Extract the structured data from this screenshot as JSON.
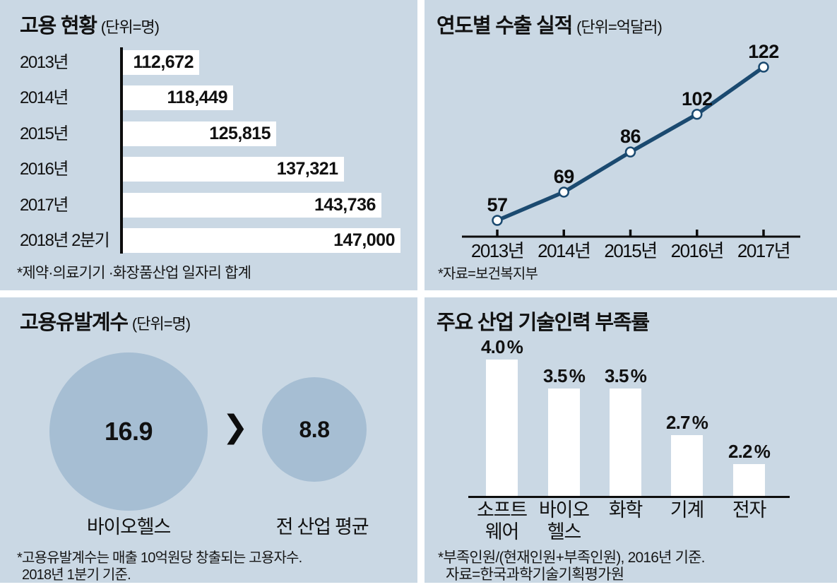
{
  "page": {
    "background": "#ffffff",
    "panel_background": "#cad8e4"
  },
  "colors": {
    "panel_background": "#cad8e4",
    "bar_fill": "#ffffff",
    "line_stroke": "#1b4a70",
    "marker_fill": "#ffffff",
    "bubble_fill": "#a6bed3",
    "axis": "#0d0d0d",
    "text": "#111111"
  },
  "panels": {
    "employment": {
      "title": "고용 현황",
      "unit": "(단위=명)",
      "footnote": "*제약·의료기기 ·화장품산업 일자리 합계"
    },
    "exports": {
      "title": "연도별 수출 실적",
      "unit": "(단위=억달러)",
      "footnote": "*자료=보건복지부"
    },
    "coefficient": {
      "title": "고용유발계수",
      "unit": "(단위=명)",
      "comparator": "❯",
      "items": [
        {
          "label": "바이오헬스",
          "value": "16.9"
        },
        {
          "label": "전 산업 평균",
          "value": "8.8"
        }
      ],
      "footnote_line1": "*고용유발계수는 매출 10억원당 창출되는 고용자수.",
      "footnote_line2": "2018년 1분기 기준."
    },
    "shortage": {
      "title": "주요 산업 기술인력 부족률",
      "footnote_line1": "*부족인원/(현재인원+부족인원), 2016년 기준.",
      "footnote_line2": "자료=한국과학기술기획평가원"
    }
  },
  "chart_data": [
    {
      "type": "bar",
      "orientation": "horizontal",
      "title": "고용 현황 (단위=명)",
      "categories": [
        "2013년",
        "2014년",
        "2015년",
        "2016년",
        "2017년",
        "2018년 2분기"
      ],
      "values": [
        112672,
        118449,
        125815,
        137321,
        143736,
        147000
      ],
      "value_labels": [
        "112,672",
        "118,449",
        "125,815",
        "137,321",
        "143,736",
        "147,000"
      ],
      "unit": "명",
      "note": "bars start at a vertical axis; value labels right-aligned inside white bars"
    },
    {
      "type": "line",
      "title": "연도별 수출 실적 (단위=억달러)",
      "x": [
        "2013년",
        "2014년",
        "2015년",
        "2016년",
        "2017년"
      ],
      "values": [
        57,
        69,
        86,
        102,
        122
      ],
      "unit": "억달러",
      "legend": "none",
      "grid": "off"
    },
    {
      "type": "bubble",
      "title": "고용유발계수 (단위=명)",
      "categories": [
        "바이오헬스",
        "전 산업 평균"
      ],
      "values": [
        16.9,
        8.8
      ],
      "unit": "명",
      "comparison": "16.9 ❯ 8.8"
    },
    {
      "type": "bar",
      "orientation": "vertical",
      "title": "주요 산업 기술인력 부족률",
      "categories": [
        "소프트웨어",
        "바이오헬스",
        "화학",
        "기계",
        "전자"
      ],
      "category_lines": [
        [
          "소프트",
          "웨어"
        ],
        [
          "바이오",
          "헬스"
        ],
        [
          "화학"
        ],
        [
          "기계"
        ],
        [
          "전자"
        ]
      ],
      "values": [
        4.0,
        3.5,
        3.5,
        2.7,
        2.2
      ],
      "value_labels": [
        "4.0",
        "3.5",
        "3.5",
        "2.7",
        "2.2"
      ],
      "unit": "%",
      "grid": "off"
    }
  ]
}
